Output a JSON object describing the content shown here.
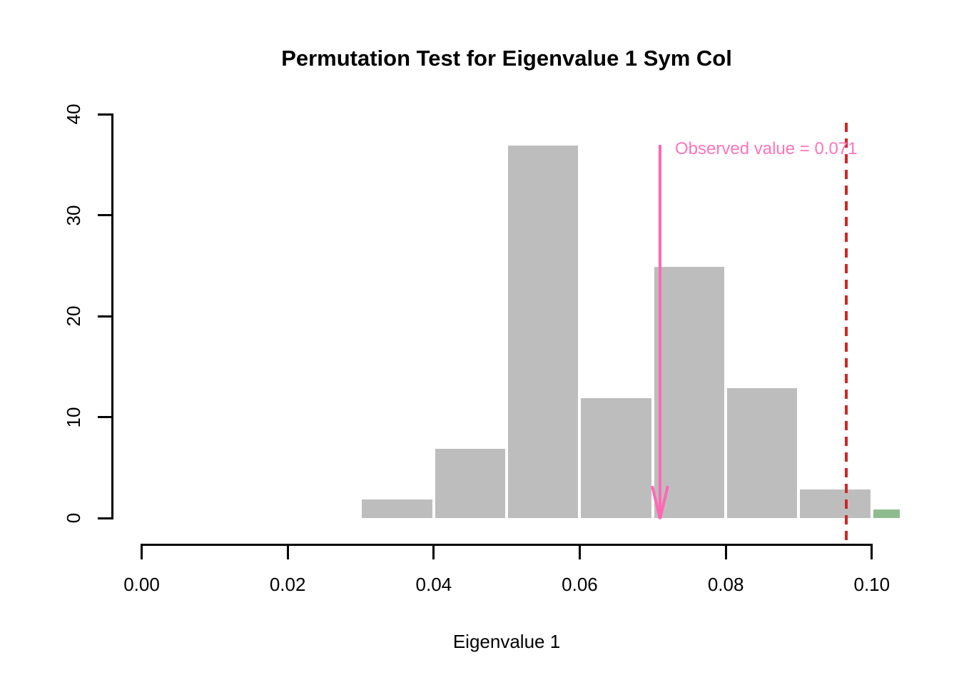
{
  "chart_data": {
    "type": "bar",
    "chart_kind": "histogram",
    "title": "Permutation Test for Eigenvalue 1 Sym Col",
    "xlabel": "Eigenvalue 1",
    "ylabel": "",
    "grid": false,
    "legend": "none",
    "x_ticks": [
      {
        "value": 0.0,
        "label": "0.00"
      },
      {
        "value": 0.02,
        "label": "0.02"
      },
      {
        "value": 0.04,
        "label": "0.04"
      },
      {
        "value": 0.06,
        "label": "0.06"
      },
      {
        "value": 0.08,
        "label": "0.08"
      },
      {
        "value": 0.1,
        "label": "0.10"
      }
    ],
    "y_ticks": [
      {
        "value": 0,
        "label": "0"
      },
      {
        "value": 10,
        "label": "10"
      },
      {
        "value": 20,
        "label": "20"
      },
      {
        "value": 30,
        "label": "30"
      },
      {
        "value": 40,
        "label": "40"
      }
    ],
    "xlim": [
      -0.004,
      0.104
    ],
    "ylim": [
      0,
      40
    ],
    "bin_width": 0.01,
    "bins": [
      {
        "start": 0.03,
        "end": 0.04,
        "count": 2,
        "highlight": false
      },
      {
        "start": 0.04,
        "end": 0.05,
        "count": 7,
        "highlight": false
      },
      {
        "start": 0.05,
        "end": 0.06,
        "count": 37,
        "highlight": false
      },
      {
        "start": 0.06,
        "end": 0.07,
        "count": 12,
        "highlight": false
      },
      {
        "start": 0.07,
        "end": 0.08,
        "count": 25,
        "highlight": false
      },
      {
        "start": 0.08,
        "end": 0.09,
        "count": 13,
        "highlight": false
      },
      {
        "start": 0.09,
        "end": 0.1,
        "count": 3,
        "highlight": false
      },
      {
        "start": 0.1,
        "end": 0.104,
        "count": 1,
        "highlight": true
      }
    ],
    "annotations": {
      "observed_value": 0.071,
      "observed_label": "Observed value = 0.071",
      "threshold_value": 0.0965
    },
    "colors": {
      "bar_fill": "#BDBDBD",
      "bar_border": "#FFFFFF",
      "highlight_fill": "#8FBC8F",
      "arrow": "#FF69B4",
      "observed_text": "#FF75BA",
      "threshold_line": "#CC2828",
      "axis": "#000000",
      "text": "#000000"
    }
  }
}
